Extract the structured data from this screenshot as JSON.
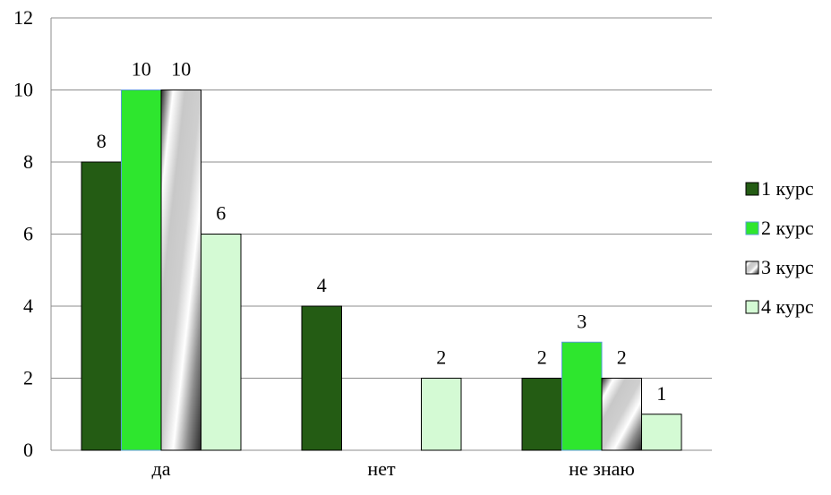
{
  "chart_data": {
    "type": "bar",
    "title": "",
    "xlabel": "",
    "ylabel": "",
    "categories": [
      "да",
      "нет",
      "не знаю"
    ],
    "ylim": [
      0,
      12
    ],
    "yticks": [
      0,
      2,
      4,
      6,
      8,
      10,
      12
    ],
    "grid": true,
    "legend_position": "right",
    "series": [
      {
        "name": "1 курс",
        "values": [
          8,
          4,
          2
        ],
        "color": "#245c14",
        "pattern": "solid"
      },
      {
        "name": "2 курс",
        "values": [
          10,
          null,
          3
        ],
        "color": "#2ee62e",
        "pattern": "solid"
      },
      {
        "name": "3 курс",
        "values": [
          10,
          null,
          2
        ],
        "color": "#7f7f7f",
        "pattern": "diagonal-gradient"
      },
      {
        "name": "4 курс",
        "values": [
          6,
          2,
          1
        ],
        "color": "#d4fad4",
        "pattern": "solid"
      }
    ]
  }
}
